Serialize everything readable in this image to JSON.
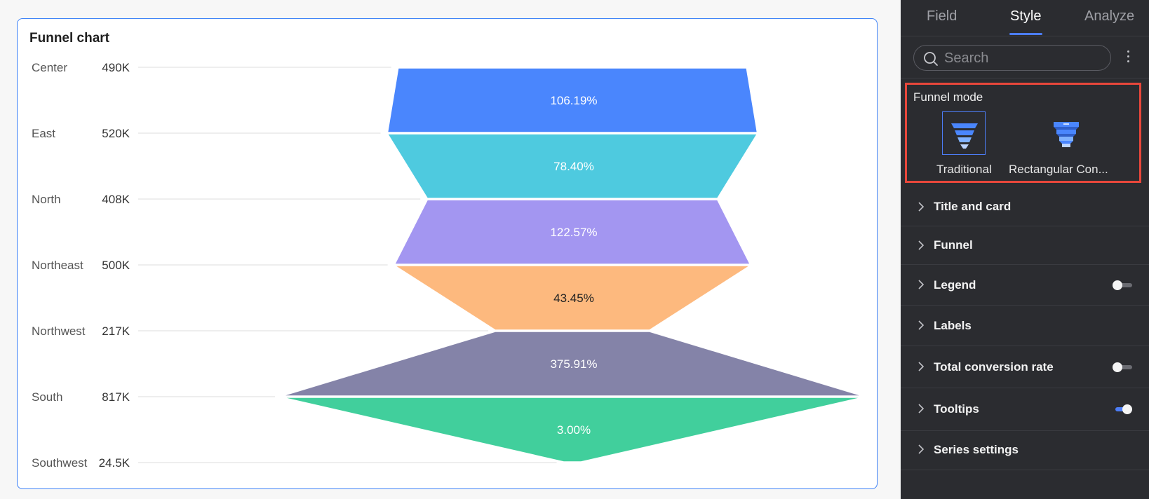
{
  "chart_data": {
    "type": "funnel",
    "title": "Funnel chart",
    "categories": [
      "Center",
      "East",
      "North",
      "Northeast",
      "Northwest",
      "South",
      "Southwest"
    ],
    "value_labels": [
      "490K",
      "520K",
      "408K",
      "500K",
      "217K",
      "817K",
      "24.5K"
    ],
    "values": [
      490000,
      520000,
      408000,
      500000,
      217000,
      817000,
      24500
    ],
    "conversion_labels": [
      "106.19%",
      "78.40%",
      "122.57%",
      "43.45%",
      "375.91%",
      "3.00%"
    ],
    "colors": [
      "#4a86fd",
      "#4ecadf",
      "#a396f1",
      "#fdb97e",
      "#8483a8",
      "#41cf9c"
    ]
  },
  "panel": {
    "tabs": [
      "Field",
      "Style",
      "Analyze"
    ],
    "active_tab": "Style",
    "search_placeholder": "Search",
    "funnel_mode": {
      "label": "Funnel mode",
      "options": [
        "Traditional",
        "Rectangular Con..."
      ],
      "selected": "Traditional"
    },
    "sections": [
      {
        "label": "Title and card"
      },
      {
        "label": "Funnel"
      },
      {
        "label": "Legend",
        "toggle": "off"
      },
      {
        "label": "Labels"
      },
      {
        "label": "Total conversion rate",
        "toggle": "off"
      },
      {
        "label": "Tooltips",
        "toggle": "on"
      },
      {
        "label": "Series settings"
      }
    ]
  }
}
